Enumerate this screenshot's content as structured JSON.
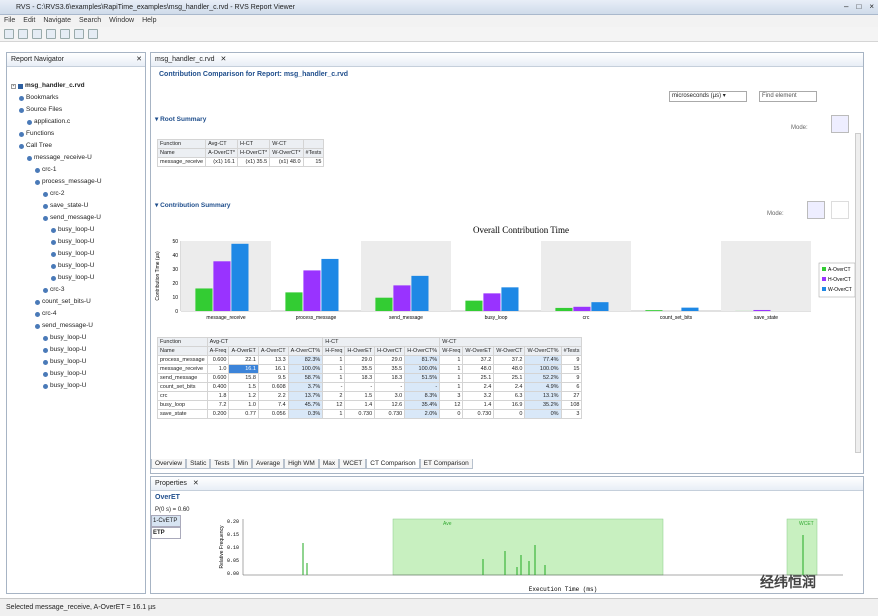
{
  "window": {
    "title": "RVS - C:\\RVS3.6\\examples\\RapiTime_examples\\msg_handler_c.rvd - RVS Report Viewer",
    "min": "–",
    "max": "□",
    "close": "×"
  },
  "menu": [
    "File",
    "Edit",
    "Navigate",
    "Search",
    "Window",
    "Help"
  ],
  "navigator": {
    "tab": "Report Navigator",
    "root": "msg_handler_c.rvd",
    "items": [
      {
        "label": "Bookmarks",
        "indent": 1
      },
      {
        "label": "Source Files",
        "indent": 1
      },
      {
        "label": "application.c",
        "indent": 2
      },
      {
        "label": "Functions",
        "indent": 1
      },
      {
        "label": "Call Tree",
        "indent": 1
      },
      {
        "label": "message_receive-U",
        "indent": 2
      },
      {
        "label": "crc-1",
        "indent": 3
      },
      {
        "label": "process_message-U",
        "indent": 3
      },
      {
        "label": "crc-2",
        "indent": 4
      },
      {
        "label": "save_state-U",
        "indent": 4
      },
      {
        "label": "send_message-U",
        "indent": 4
      },
      {
        "label": "busy_loop-U",
        "indent": 5
      },
      {
        "label": "busy_loop-U",
        "indent": 5
      },
      {
        "label": "busy_loop-U",
        "indent": 5
      },
      {
        "label": "busy_loop-U",
        "indent": 5
      },
      {
        "label": "busy_loop-U",
        "indent": 5
      },
      {
        "label": "crc-3",
        "indent": 4
      },
      {
        "label": "count_set_bits-U",
        "indent": 3
      },
      {
        "label": "crc-4",
        "indent": 3
      },
      {
        "label": "send_message-U",
        "indent": 3
      },
      {
        "label": "busy_loop-U",
        "indent": 4
      },
      {
        "label": "busy_loop-U",
        "indent": 4
      },
      {
        "label": "busy_loop-U",
        "indent": 4
      },
      {
        "label": "busy_loop-U",
        "indent": 4
      },
      {
        "label": "busy_loop-U",
        "indent": 4
      }
    ]
  },
  "editor": {
    "tab": "msg_handler_c.rvd",
    "report_title": "Contribution Comparison for Report: msg_handler_c.rvd",
    "units": "microseconds (µs)",
    "find": "Find element",
    "root_summary": {
      "heading": "Root Summary",
      "mode": "Mode:",
      "group_headers": [
        "Function",
        "Avg-CT",
        "H-CT",
        "W-CT"
      ],
      "headers": [
        "Name",
        "A-OverCT*",
        "H-OverCT*",
        "W-OverCT*",
        "#Tests"
      ],
      "row": [
        "message_receive",
        "(x1) 16.1",
        "(x1) 35.5",
        "(x1) 48.0",
        "15"
      ]
    },
    "contribution": {
      "heading": "Contribution Summary",
      "mode": "Mode:"
    },
    "table": {
      "group_headers": [
        "Function",
        "Avg-CT",
        "H-CT",
        "W-CT"
      ],
      "headers": [
        "Name",
        "A-Freq",
        "A-OverET",
        "A-OverCT",
        "A-OverCT%",
        "H-Freq",
        "H-OverET",
        "H-OverCT",
        "H-OverCT%",
        "W-Freq",
        "W-OverET",
        "W-OverCT",
        "W-OverCT%",
        "#Tests"
      ],
      "rows": [
        [
          "process_message",
          "0.600",
          "22.1",
          "13.3",
          "82.3%",
          "1",
          "29.0",
          "29.0",
          "81.7%",
          "1",
          "37.2",
          "37.2",
          "77.4%",
          "9"
        ],
        [
          "message_receive",
          "1.0",
          "16.1",
          "16.1",
          "100.0%",
          "1",
          "35.5",
          "35.5",
          "100.0%",
          "1",
          "48.0",
          "48.0",
          "100.0%",
          "15"
        ],
        [
          "send_message",
          "0.600",
          "15.8",
          "9.5",
          "58.7%",
          "1",
          "18.3",
          "18.3",
          "51.5%",
          "1",
          "25.1",
          "25.1",
          "52.2%",
          "9"
        ],
        [
          "count_set_bits",
          "0.400",
          "1.5",
          "0.608",
          "3.7%",
          "-",
          "-",
          "-",
          "-",
          "1",
          "2.4",
          "2.4",
          "4.9%",
          "6"
        ],
        [
          "crc",
          "1.8",
          "1.2",
          "2.2",
          "13.7%",
          "2",
          "1.5",
          "3.0",
          "8.3%",
          "3",
          "3.2",
          "6.3",
          "13.1%",
          "27"
        ],
        [
          "busy_loop",
          "7.2",
          "1.0",
          "7.4",
          "45.7%",
          "12",
          "1.4",
          "12.6",
          "35.4%",
          "12",
          "1.4",
          "16.9",
          "35.2%",
          "108"
        ],
        [
          "save_state",
          "0.200",
          "0.77",
          "0.056",
          "0.3%",
          "1",
          "0.730",
          "0.730",
          "2.0%",
          "0",
          "0.730",
          "0",
          "0%",
          "3"
        ]
      ]
    },
    "bottom_tabs": [
      "Overview",
      "Static",
      "Tests",
      "Min",
      "Average",
      "High WM",
      "Max",
      "WCET",
      "CT Comparison",
      "ET Comparison"
    ],
    "active_tab": "CT Comparison"
  },
  "properties": {
    "tab": "Properties",
    "heading": "OverET",
    "subheading": "P(0 s) = 0.60",
    "side_tabs": [
      "1-CvETP",
      "ETP"
    ],
    "hist_ylabel": "Relative Frequency",
    "hist_xlabel": "Execution Time (ms)",
    "hist_yticks": [
      "0.20",
      "0.15",
      "0.10",
      "0.05",
      "0.00"
    ],
    "hist_label_ave": "Ave",
    "hist_label_wcet": "WCET"
  },
  "status": "Selected message_receive, A-OverET = 16.1 µs",
  "watermark": "经纬恒润",
  "chart_data": {
    "type": "bar",
    "title": "Overall Contribution Time",
    "ylabel": "Contribution Time (µs)",
    "xlabel": "",
    "categories": [
      "message_receive",
      "process_message",
      "send_message",
      "busy_loop",
      "crc",
      "count_set_bits",
      "save_state"
    ],
    "series": [
      {
        "name": "A-OverCT",
        "color": "#33cc33",
        "values": [
          16.1,
          13.3,
          9.5,
          7.4,
          2.2,
          0.608,
          0.056
        ]
      },
      {
        "name": "H-OverCT",
        "color": "#9933ff",
        "values": [
          35.5,
          29.0,
          18.3,
          12.6,
          3.0,
          0,
          0.73
        ]
      },
      {
        "name": "W-OverCT",
        "color": "#1e88e5",
        "values": [
          48.0,
          37.2,
          25.1,
          16.9,
          6.3,
          2.4,
          0
        ]
      }
    ],
    "ylim": [
      0,
      50
    ],
    "yticks": [
      0,
      10,
      20,
      30,
      40,
      50
    ],
    "legend": "right",
    "grid": false
  }
}
